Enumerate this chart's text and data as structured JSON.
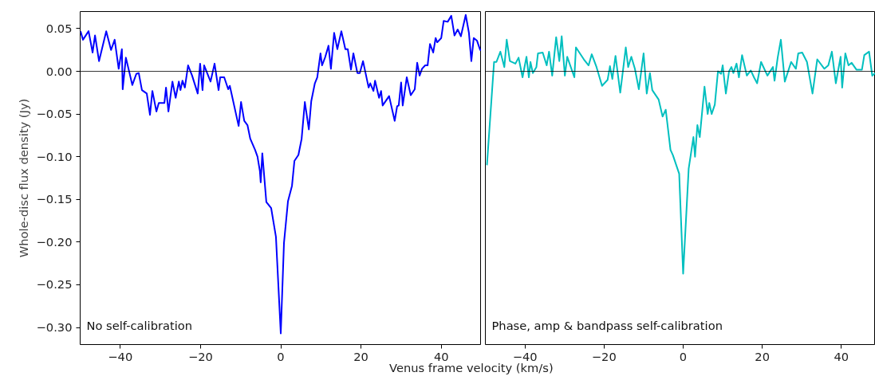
{
  "chart_data": [
    {
      "type": "line",
      "xlabel": "Venus frame velocity (km/s)",
      "ylabel": "Whole-disc flux density (Jy)",
      "annotations": [
        "No self-calibration"
      ],
      "grid": false,
      "xlim": [
        -50,
        50
      ],
      "xticks": [
        -40,
        -20,
        0,
        20,
        40
      ],
      "ylim": [
        -0.32,
        0.07
      ],
      "yticks": [
        {
          "value": 0.05,
          "label": "0.05"
        },
        {
          "value": 0,
          "label": "0.00"
        },
        {
          "value": -0.05,
          "label": "−0.05"
        },
        {
          "value": -0.1,
          "label": "−0.10"
        },
        {
          "value": -0.15,
          "label": "−0.15"
        },
        {
          "value": -0.2,
          "label": "−0.20"
        },
        {
          "value": -0.25,
          "label": "−0.25"
        },
        {
          "value": -0.3,
          "label": "−0.30"
        }
      ],
      "ref_lines": [
        {
          "axis": "y",
          "value": 0,
          "color": "#000000"
        }
      ],
      "series": [
        {
          "color": "#0000ff",
          "x": [
            -49.9,
            -49.3,
            -47.9,
            -46.9,
            -46.3,
            -45.3,
            -43.5,
            -42.3,
            -41.4,
            -40.4,
            -39.6,
            -39.4,
            -38.6,
            -37.0,
            -36.0,
            -35.4,
            -34.6,
            -33.4,
            -32.6,
            -32.0,
            -31.0,
            -30.4,
            -29.0,
            -28.6,
            -28.0,
            -27.0,
            -26.2,
            -25.4,
            -25.0,
            -24.5,
            -23.9,
            -23.1,
            -22.1,
            -20.7,
            -20.1,
            -19.5,
            -19.1,
            -17.5,
            -16.5,
            -15.5,
            -15.1,
            -14.1,
            -13.1,
            -12.7,
            -10.5,
            -9.9,
            -9.1,
            -8.3,
            -7.6,
            -6.4,
            -5.8,
            -5.2,
            -5.0,
            -4.6,
            -3.6,
            -2.4,
            -1.2,
            0.0,
            0.8,
            1.8,
            2.8,
            3.4,
            4.4,
            5.2,
            6.0,
            7.0,
            7.6,
            8.5,
            9.1,
            9.9,
            10.3,
            11.1,
            11.9,
            12.5,
            13.3,
            14.1,
            15.1,
            16.1,
            16.7,
            17.5,
            18.1,
            19.1,
            19.7,
            20.5,
            21.9,
            22.3,
            23.1,
            23.5,
            24.5,
            25.0,
            25.4,
            27.0,
            28.4,
            29.0,
            29.4,
            30.0,
            30.4,
            31.4,
            32.4,
            33.4,
            34.0,
            34.6,
            35.2,
            36.0,
            36.6,
            37.2,
            38.0,
            38.6,
            39.0,
            40.0,
            40.6,
            41.6,
            42.5,
            43.3,
            44.1,
            44.9,
            46.1,
            46.9,
            47.5,
            48.1,
            48.9,
            49.7,
            50.0
          ],
          "values": [
            0.047,
            0.037,
            0.047,
            0.022,
            0.042,
            0.012,
            0.047,
            0.025,
            0.037,
            0.003,
            0.026,
            -0.021,
            0.016,
            -0.016,
            -0.003,
            -0.002,
            -0.022,
            -0.026,
            -0.051,
            -0.023,
            -0.047,
            -0.037,
            -0.037,
            -0.019,
            -0.047,
            -0.012,
            -0.031,
            -0.012,
            -0.022,
            -0.011,
            -0.019,
            0.007,
            -0.005,
            -0.026,
            0.009,
            -0.022,
            0.007,
            -0.012,
            0.009,
            -0.022,
            -0.007,
            -0.007,
            -0.021,
            -0.017,
            -0.064,
            -0.036,
            -0.058,
            -0.063,
            -0.079,
            -0.092,
            -0.1,
            -0.117,
            -0.13,
            -0.096,
            -0.153,
            -0.16,
            -0.194,
            -0.307,
            -0.201,
            -0.152,
            -0.134,
            -0.105,
            -0.098,
            -0.079,
            -0.036,
            -0.068,
            -0.035,
            -0.014,
            -0.007,
            0.021,
            0.007,
            0.017,
            0.03,
            0.003,
            0.045,
            0.026,
            0.047,
            0.026,
            0.026,
            0.002,
            0.021,
            -0.002,
            -0.002,
            0.012,
            -0.019,
            -0.014,
            -0.023,
            -0.011,
            -0.031,
            -0.023,
            -0.04,
            -0.029,
            -0.058,
            -0.041,
            -0.04,
            -0.013,
            -0.04,
            -0.007,
            -0.028,
            -0.021,
            0.01,
            -0.005,
            0.003,
            0.007,
            0.007,
            0.032,
            0.022,
            0.039,
            0.034,
            0.039,
            0.059,
            0.058,
            0.065,
            0.042,
            0.049,
            0.041,
            0.066,
            0.045,
            0.012,
            0.039,
            0.036,
            0.025,
            0.025
          ]
        }
      ]
    },
    {
      "type": "line",
      "annotations": [
        "Phase, amp & bandpass self-calibration"
      ],
      "grid": false,
      "tick_labels": "x",
      "xlim": [
        -50,
        48.6
      ],
      "xticks": [
        -40,
        -20,
        0,
        20,
        40
      ],
      "ylim": [
        -0.32,
        0.07
      ],
      "ref_lines": [
        {
          "axis": "y",
          "value": 0,
          "color": "#000000"
        }
      ],
      "series": [
        {
          "color": "#00bfbf",
          "x": [
            -49.6,
            -47.8,
            -47.2,
            -46.2,
            -45.2,
            -44.6,
            -43.8,
            -42.4,
            -41.6,
            -40.6,
            -39.6,
            -39.0,
            -38.6,
            -38.0,
            -37.1,
            -36.7,
            -35.5,
            -34.5,
            -33.9,
            -33.1,
            -32.1,
            -31.3,
            -30.7,
            -29.9,
            -29.3,
            -27.5,
            -27.1,
            -25.1,
            -23.9,
            -23.1,
            -21.9,
            -20.5,
            -19.1,
            -18.5,
            -17.9,
            -17.1,
            -15.9,
            -14.5,
            -13.9,
            -13.1,
            -12.2,
            -11.2,
            -10.0,
            -9.2,
            -8.4,
            -7.8,
            -6.2,
            -5.2,
            -4.4,
            -3.2,
            -2.6,
            -1.0,
            0.0,
            1.4,
            2.6,
            3.0,
            3.6,
            4.2,
            5.4,
            6.2,
            6.6,
            7.2,
            8.0,
            8.8,
            9.6,
            10.0,
            10.8,
            11.6,
            12.2,
            12.7,
            13.5,
            14.1,
            14.9,
            16.1,
            17.1,
            17.9,
            18.7,
            19.7,
            21.3,
            22.7,
            23.1,
            23.9,
            24.7,
            25.7,
            27.3,
            28.5,
            29.1,
            30.1,
            31.3,
            32.7,
            33.9,
            35.7,
            36.7,
            37.6,
            38.6,
            39.8,
            40.2,
            41.0,
            41.8,
            42.6,
            43.8,
            45.2,
            45.8,
            47.0,
            47.8,
            48.6
          ],
          "values": [
            -0.11,
            0.011,
            0.011,
            0.023,
            0.005,
            0.037,
            0.012,
            0.009,
            0.016,
            -0.007,
            0.017,
            -0.007,
            0.011,
            -0.002,
            0.005,
            0.021,
            0.022,
            0.007,
            0.023,
            -0.005,
            0.04,
            0.012,
            0.041,
            -0.005,
            0.017,
            -0.007,
            0.028,
            0.014,
            0.007,
            0.02,
            0.005,
            -0.017,
            -0.01,
            0.006,
            -0.009,
            0.018,
            -0.025,
            0.028,
            0.005,
            0.017,
            0.003,
            -0.021,
            0.021,
            -0.026,
            -0.002,
            -0.022,
            -0.033,
            -0.053,
            -0.045,
            -0.092,
            -0.098,
            -0.12,
            -0.237,
            -0.114,
            -0.077,
            -0.1,
            -0.063,
            -0.077,
            -0.018,
            -0.05,
            -0.037,
            -0.05,
            -0.039,
            0.0,
            -0.003,
            0.007,
            -0.026,
            0.0,
            0.005,
            -0.002,
            0.009,
            -0.007,
            0.019,
            -0.005,
            0.001,
            -0.007,
            -0.014,
            0.011,
            -0.005,
            0.005,
            -0.011,
            0.016,
            0.037,
            -0.012,
            0.011,
            0.003,
            0.021,
            0.022,
            0.011,
            -0.026,
            0.014,
            0.003,
            0.007,
            0.023,
            -0.014,
            0.017,
            -0.019,
            0.021,
            0.007,
            0.01,
            0.002,
            0.002,
            0.019,
            0.023,
            -0.005,
            -0.002
          ]
        }
      ]
    }
  ]
}
